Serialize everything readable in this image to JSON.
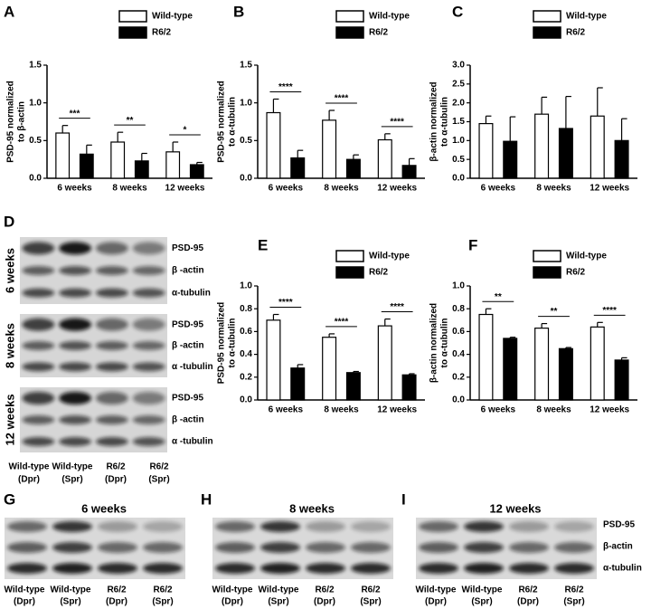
{
  "chart_data": [
    {
      "type": "bar",
      "label": "A",
      "ylabel": [
        "PSD-95 normalized",
        "to β-actin"
      ],
      "categories": [
        "6 weeks",
        "8 weeks",
        "12 weeks"
      ],
      "series": [
        {
          "name": "Wild-type",
          "color": "#ffffff",
          "values": [
            0.6,
            0.48,
            0.35
          ],
          "errors": [
            0.1,
            0.13,
            0.13
          ]
        },
        {
          "name": "R6/2",
          "color": "#000000",
          "values": [
            0.32,
            0.23,
            0.18
          ],
          "errors": [
            0.12,
            0.1,
            0.03
          ]
        }
      ],
      "significance": [
        "***",
        "**",
        "*"
      ],
      "ylim": [
        0,
        1.5
      ],
      "yticks": [
        {
          "value": 0,
          "label": "0.0"
        },
        {
          "value": 0.5,
          "label": "0.5"
        },
        {
          "value": 1,
          "label": "1.0"
        },
        {
          "value": 1.5,
          "label": "1.5"
        }
      ]
    },
    {
      "type": "bar",
      "label": "B",
      "ylabel": [
        "PSD-95 normalized",
        "to α-tubulin"
      ],
      "categories": [
        "6 weeks",
        "8 weeks",
        "12 weeks"
      ],
      "series": [
        {
          "name": "Wild-type",
          "color": "#ffffff",
          "values": [
            0.87,
            0.77,
            0.51
          ],
          "errors": [
            0.18,
            0.13,
            0.08
          ]
        },
        {
          "name": "R6/2",
          "color": "#000000",
          "values": [
            0.27,
            0.25,
            0.17
          ],
          "errors": [
            0.1,
            0.06,
            0.09
          ]
        }
      ],
      "significance": [
        "****",
        "****",
        "****"
      ],
      "ylim": [
        0,
        1.5
      ],
      "yticks": [
        {
          "value": 0,
          "label": "0.0"
        },
        {
          "value": 0.5,
          "label": "0.5"
        },
        {
          "value": 1,
          "label": "1.0"
        },
        {
          "value": 1.5,
          "label": "1.5"
        }
      ]
    },
    {
      "type": "bar",
      "label": "C",
      "ylabel": [
        "β-actin normalized",
        "to α-tubulin"
      ],
      "categories": [
        "6 weeks",
        "8 weeks",
        "12 weeks"
      ],
      "series": [
        {
          "name": "Wild-type",
          "color": "#ffffff",
          "values": [
            1.45,
            1.7,
            1.65
          ],
          "errors": [
            0.2,
            0.45,
            0.75
          ]
        },
        {
          "name": "R6/2",
          "color": "#000000",
          "values": [
            0.98,
            1.32,
            1.0
          ],
          "errors": [
            0.65,
            0.85,
            0.58
          ]
        }
      ],
      "ylim": [
        0,
        3
      ],
      "yticks": [
        {
          "value": 0,
          "label": "0.0"
        },
        {
          "value": 0.5,
          "label": "0.5"
        },
        {
          "value": 1,
          "label": "1.0"
        },
        {
          "value": 1.5,
          "label": "1.5"
        },
        {
          "value": 2,
          "label": "2.0"
        },
        {
          "value": 2.5,
          "label": "2.5"
        },
        {
          "value": 3,
          "label": "3.0"
        }
      ]
    },
    {
      "type": "bar",
      "label": "E",
      "ylabel": [
        "PSD-95 normalized",
        "to α-tubulin"
      ],
      "categories": [
        "6 weeks",
        "8 weeks",
        "12 weeks"
      ],
      "series": [
        {
          "name": "Wild-type",
          "color": "#ffffff",
          "values": [
            0.7,
            0.55,
            0.65
          ],
          "errors": [
            0.05,
            0.03,
            0.06
          ]
        },
        {
          "name": "R6/2",
          "color": "#000000",
          "values": [
            0.28,
            0.24,
            0.22
          ],
          "errors": [
            0.03,
            0.01,
            0.01
          ]
        }
      ],
      "significance": [
        "****",
        "****",
        "****"
      ],
      "ylim": [
        0,
        1
      ],
      "yticks": [
        {
          "value": 0,
          "label": "0.0"
        },
        {
          "value": 0.2,
          "label": "0.2"
        },
        {
          "value": 0.4,
          "label": "0.4"
        },
        {
          "value": 0.6,
          "label": "0.6"
        },
        {
          "value": 0.8,
          "label": "0.8"
        },
        {
          "value": 1,
          "label": "1.0"
        }
      ]
    },
    {
      "type": "bar",
      "label": "F",
      "ylabel": [
        "β-actin normalized",
        "to α-tubulin"
      ],
      "categories": [
        "6 weeks",
        "8 weeks",
        "12 weeks"
      ],
      "series": [
        {
          "name": "Wild-type",
          "color": "#ffffff",
          "values": [
            0.75,
            0.63,
            0.64
          ],
          "errors": [
            0.05,
            0.04,
            0.04
          ]
        },
        {
          "name": "R6/2",
          "color": "#000000",
          "values": [
            0.54,
            0.45,
            0.35
          ],
          "errors": [
            0.01,
            0.01,
            0.02
          ]
        }
      ],
      "significance": [
        "**",
        "**",
        "****"
      ],
      "ylim": [
        0,
        1
      ],
      "yticks": [
        {
          "value": 0,
          "label": "0.0"
        },
        {
          "value": 0.2,
          "label": "0.2"
        },
        {
          "value": 0.4,
          "label": "0.4"
        },
        {
          "value": 0.6,
          "label": "0.6"
        },
        {
          "value": 0.8,
          "label": "0.8"
        },
        {
          "value": 1,
          "label": "1.0"
        }
      ]
    }
  ],
  "blot_d": {
    "label": "D",
    "groups": [
      {
        "title": "6 weeks",
        "rows": [
          "PSD-95",
          "β -actin",
          "α-tubulin"
        ]
      },
      {
        "title": "8 weeks",
        "rows": [
          "PSD-95",
          "β -actin",
          "α -tubulin"
        ]
      },
      {
        "title": "12 weeks",
        "rows": [
          "PSD-95",
          "β -actin",
          "α -tubulin"
        ]
      }
    ],
    "lanes": [
      [
        "Wild-type",
        "(Dpr)"
      ],
      [
        "Wild-type",
        "(Spr)"
      ],
      [
        "R6/2",
        "(Dpr)"
      ],
      [
        "R6/2",
        "(Spr)"
      ]
    ]
  },
  "blots_bottom": [
    {
      "label": "G",
      "title": "6 weeks",
      "lanes": [
        [
          "Wild-type",
          "(Dpr)"
        ],
        [
          "Wild-type",
          "(Spr)"
        ],
        [
          "R6/2",
          "(Dpr)"
        ],
        [
          "R6/2",
          "(Spr)"
        ]
      ]
    },
    {
      "label": "H",
      "title": "8 weeks",
      "lanes": [
        [
          "Wild-type",
          "(Dpr)"
        ],
        [
          "Wild-type",
          "(Spr)"
        ],
        [
          "R6/2",
          "(Dpr)"
        ],
        [
          "R6/2",
          "(Spr)"
        ]
      ]
    },
    {
      "label": "I",
      "title": "12 weeks",
      "lanes": [
        [
          "Wild-type",
          "(Dpr)"
        ],
        [
          "Wild-type",
          "(Spr)"
        ],
        [
          "R6/2",
          "(Dpr)"
        ],
        [
          "R6/2",
          "(Spr)"
        ]
      ]
    }
  ],
  "row_labels": [
    "PSD-95",
    "β-actin",
    "α-tubulin"
  ]
}
